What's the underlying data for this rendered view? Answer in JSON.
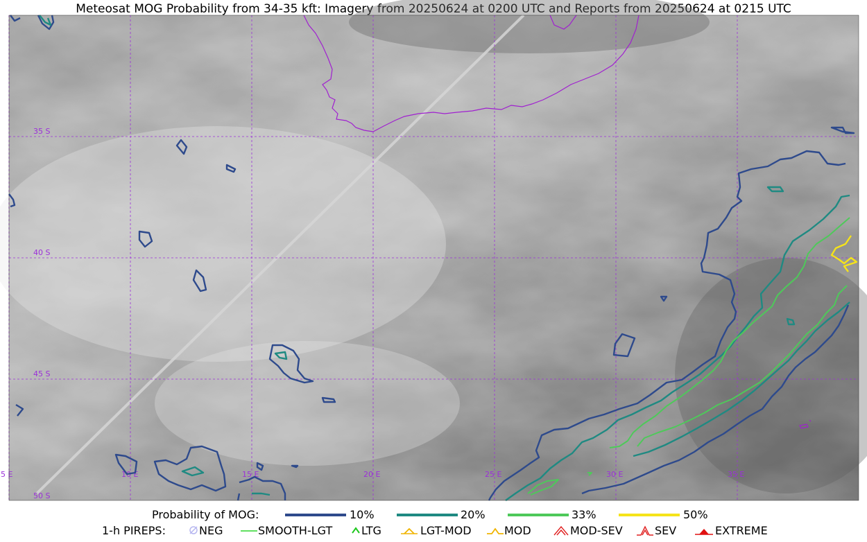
{
  "title": "Meteosat MOG Probability from 34-35 kft: Imagery from 20250624 at 0200 UTC and Reports from 20250624 at 0215 UTC",
  "map": {
    "lon_labels": [
      "5 E",
      "10 E",
      "15 E",
      "20 E",
      "25 E",
      "30 E",
      "35 E"
    ],
    "lat_labels": [
      "35 S",
      "40 S",
      "45 S",
      "50 S"
    ],
    "grid_color": "#9b30d9",
    "coast_color": "#a020d0"
  },
  "legend": {
    "probability": {
      "label": "Probability of MOG:",
      "items": [
        {
          "label": "10%",
          "color": "#2e4a8c"
        },
        {
          "label": "20%",
          "color": "#1f8a82"
        },
        {
          "label": "33%",
          "color": "#4ec95a"
        },
        {
          "label": "50%",
          "color": "#f5e31a"
        }
      ]
    },
    "pireps": {
      "label": "1-h PIREPS:",
      "items": [
        {
          "label": "NEG",
          "icon": "neg-icon",
          "color": "#b7b7f0"
        },
        {
          "label": "SMOOTH-LGT",
          "icon": "smooth-lgt-icon",
          "color": "#2bd62b"
        },
        {
          "label": "LTG",
          "icon": "ltg-icon",
          "color": "#1ec81e"
        },
        {
          "label": "LGT-MOD",
          "icon": "lgt-mod-icon",
          "color": "#f0b400"
        },
        {
          "label": "MOD",
          "icon": "mod-icon",
          "color": "#f0b400"
        },
        {
          "label": "MOD-SEV",
          "icon": "mod-sev-icon",
          "color": "#e02020"
        },
        {
          "label": "SEV",
          "icon": "sev-icon",
          "color": "#e02020"
        },
        {
          "label": "EXTREME",
          "icon": "extreme-icon",
          "color": "#e01010"
        }
      ]
    }
  }
}
